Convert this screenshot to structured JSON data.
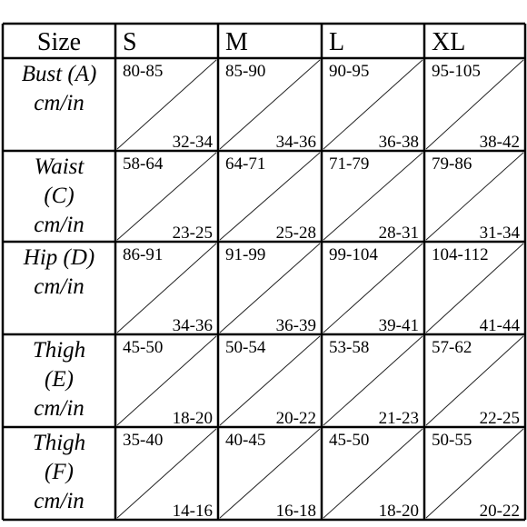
{
  "table": {
    "header": [
      "Size",
      "S",
      "M",
      "L",
      "XL"
    ],
    "rows": [
      {
        "label": [
          "Bust (A)",
          "cm/in"
        ],
        "cells": [
          [
            "80-85",
            "32-34"
          ],
          [
            "85-90",
            "34-36"
          ],
          [
            "90-95",
            "36-38"
          ],
          [
            "95-105",
            "38-42"
          ]
        ]
      },
      {
        "label": [
          "Waist",
          "(C)",
          "cm/in"
        ],
        "cells": [
          [
            "58-64",
            "23-25"
          ],
          [
            "64-71",
            "25-28"
          ],
          [
            "71-79",
            "28-31"
          ],
          [
            "79-86",
            "31-34"
          ]
        ]
      },
      {
        "label": [
          "Hip (D)",
          "cm/in"
        ],
        "cells": [
          [
            "86-91",
            "34-36"
          ],
          [
            "91-99",
            "36-39"
          ],
          [
            "99-104",
            "39-41"
          ],
          [
            "104-112",
            "41-44"
          ]
        ]
      },
      {
        "label": [
          "Thigh",
          "(E)",
          "cm/in"
        ],
        "cells": [
          [
            "45-50",
            "18-20"
          ],
          [
            "50-54",
            "20-22"
          ],
          [
            "53-58",
            "21-23"
          ],
          [
            "57-62",
            "22-25"
          ]
        ]
      },
      {
        "label": [
          "Thigh",
          "(F)",
          "cm/in"
        ],
        "cells": [
          [
            "35-40",
            "14-16"
          ],
          [
            "40-45",
            "16-18"
          ],
          [
            "45-50",
            "18-20"
          ],
          [
            "50-55",
            "20-22"
          ]
        ]
      }
    ]
  }
}
